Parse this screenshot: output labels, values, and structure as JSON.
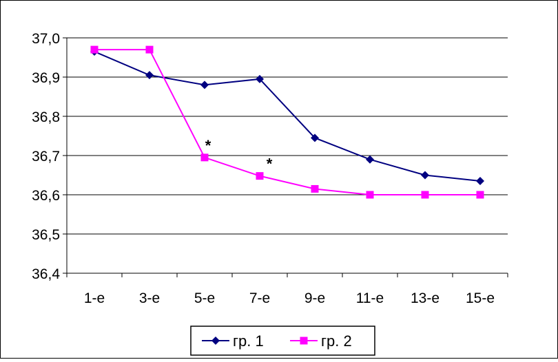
{
  "chart_data": {
    "type": "line",
    "categories": [
      "1-е",
      "3-е",
      "5-е",
      "7-е",
      "9-е",
      "11-е",
      "13-е",
      "15-е"
    ],
    "ylim": [
      36.4,
      37.0
    ],
    "yticks": [
      36.4,
      36.5,
      36.6,
      36.7,
      36.8,
      36.9,
      37.0
    ],
    "ytick_labels": [
      "36,4",
      "36,5",
      "36,6",
      "36,7",
      "36,8",
      "36,9",
      "37,0"
    ],
    "grid": "horizontal",
    "legend_position": "bottom",
    "series": [
      {
        "name": "гр. 1",
        "color": "#000080",
        "marker": "diamond",
        "values": [
          36.965,
          36.905,
          36.88,
          36.895,
          36.745,
          36.69,
          36.65,
          36.635
        ]
      },
      {
        "name": "гр. 2",
        "color": "#ff00ff",
        "marker": "square",
        "values": [
          36.97,
          36.97,
          36.695,
          36.648,
          36.615,
          36.6,
          36.6,
          36.6
        ]
      }
    ],
    "annotations": [
      {
        "text": "*",
        "series": 1,
        "category_index": 2
      },
      {
        "text": "*",
        "series": 1,
        "category_index": 3
      }
    ]
  }
}
